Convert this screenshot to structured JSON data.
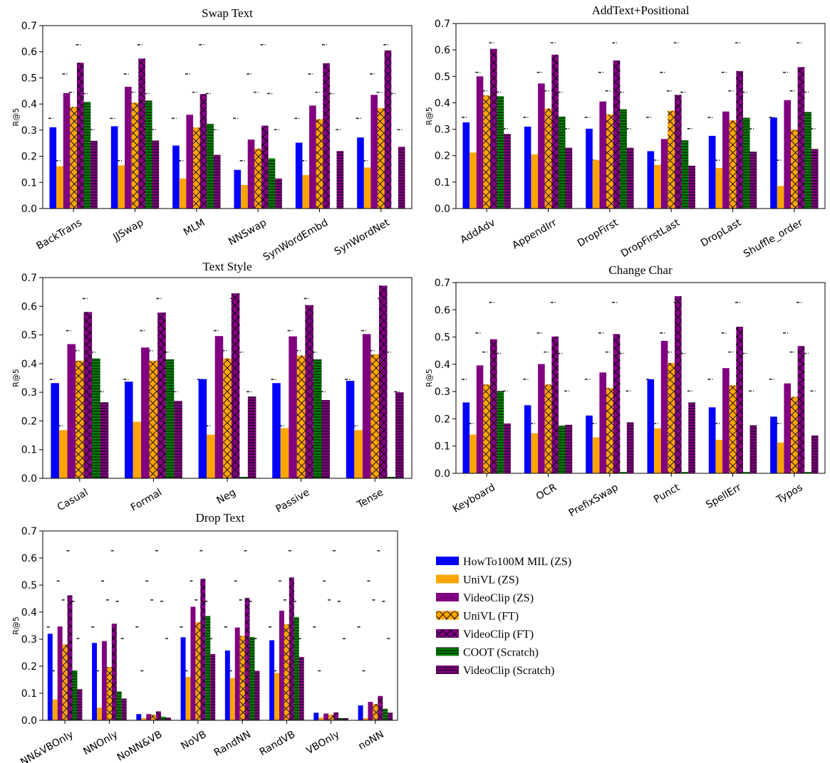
{
  "series_styles": [
    {
      "name": "HowTo100M MIL (ZS)",
      "color": "#0000ff",
      "hatch": "none"
    },
    {
      "name": "UniVL (ZS)",
      "color": "#ffa500",
      "hatch": "none"
    },
    {
      "name": "VideoClip (ZS)",
      "color": "#800080",
      "hatch": "none"
    },
    {
      "name": "UniVL (FT)",
      "color": "#ffa500",
      "hatch": "cross"
    },
    {
      "name": "VideoClip (FT)",
      "color": "#800080",
      "hatch": "cross"
    },
    {
      "name": "COOT (Scratch)",
      "color": "#008000",
      "hatch": "horizontal"
    },
    {
      "name": "VideoClip (Scratch)",
      "color": "#800080",
      "hatch": "horizontal"
    }
  ],
  "reference_levels": [
    0.345,
    0.183,
    0.515,
    0.445,
    0.627,
    0.44,
    0.302
  ],
  "chart_data": [
    {
      "type": "bar",
      "title": "Swap Text",
      "ylabel": "R@5",
      "ylim": [
        0,
        0.7
      ],
      "yticks": [
        "0.0",
        "0.1",
        "0.2",
        "0.3",
        "0.4",
        "0.5",
        "0.6",
        "0.7"
      ],
      "categories": [
        "BackTrans",
        "JJSwap",
        "MLM",
        "NNSwap",
        "SynWordEmbd",
        "SynWordNet"
      ],
      "values": [
        [
          0.311,
          0.162,
          0.442,
          0.389,
          0.558,
          0.408,
          0.259
        ],
        [
          0.315,
          0.165,
          0.466,
          0.405,
          0.574,
          0.413,
          0.26
        ],
        [
          0.241,
          0.115,
          0.359,
          0.31,
          0.438,
          0.324,
          0.205
        ],
        [
          0.148,
          0.09,
          0.264,
          0.229,
          0.317,
          0.192,
          0.115
        ],
        [
          0.252,
          0.128,
          0.394,
          0.342,
          0.556,
          0.0,
          0.22
        ],
        [
          0.272,
          0.157,
          0.435,
          0.384,
          0.605,
          0.0,
          0.236
        ]
      ]
    },
    {
      "type": "bar",
      "title": "AddText+Positional",
      "ylabel": "R@5",
      "ylim": [
        0,
        0.7
      ],
      "yticks": [
        "0.0",
        "0.1",
        "0.2",
        "0.3",
        "0.4",
        "0.5",
        "0.6",
        "0.7"
      ],
      "categories": [
        "AddAdv",
        "AppendIrr",
        "DropFirst",
        "DropFirstLast",
        "DropLast",
        "Shuffle_order"
      ],
      "values": [
        [
          0.326,
          0.212,
          0.5,
          0.428,
          0.604,
          0.425,
          0.282
        ],
        [
          0.31,
          0.205,
          0.473,
          0.378,
          0.582,
          0.348,
          0.23
        ],
        [
          0.302,
          0.183,
          0.405,
          0.356,
          0.56,
          0.375,
          0.23
        ],
        [
          0.217,
          0.165,
          0.263,
          0.37,
          0.43,
          0.258,
          0.162
        ],
        [
          0.275,
          0.153,
          0.367,
          0.333,
          0.52,
          0.343,
          0.215
        ],
        [
          0.344,
          0.085,
          0.41,
          0.298,
          0.535,
          0.365,
          0.225
        ]
      ]
    },
    {
      "type": "bar",
      "title": "Text Style",
      "ylabel": "R@5",
      "ylim": [
        0,
        0.7
      ],
      "yticks": [
        "0.0",
        "0.1",
        "0.2",
        "0.3",
        "0.4",
        "0.5",
        "0.6",
        "0.7"
      ],
      "categories": [
        "Casual",
        "Formal",
        "Neg",
        "Passive",
        "Tense"
      ],
      "values": [
        [
          0.332,
          0.168,
          0.468,
          0.41,
          0.58,
          0.418,
          0.265
        ],
        [
          0.337,
          0.197,
          0.456,
          0.41,
          0.578,
          0.415,
          0.27
        ],
        [
          0.346,
          0.152,
          0.496,
          0.418,
          0.645,
          0.005,
          0.285
        ],
        [
          0.332,
          0.175,
          0.495,
          0.428,
          0.604,
          0.415,
          0.273
        ],
        [
          0.34,
          0.168,
          0.503,
          0.432,
          0.672,
          0.005,
          0.3
        ]
      ]
    },
    {
      "type": "bar",
      "title": "Change Char",
      "ylabel": "R@5",
      "ylim": [
        0,
        0.7
      ],
      "yticks": [
        "0.0",
        "0.1",
        "0.2",
        "0.3",
        "0.4",
        "0.5",
        "0.6",
        "0.7"
      ],
      "categories": [
        "Keyboard",
        "OCR",
        "PrefixSwap",
        "Punct",
        "SpellErr",
        "Typos"
      ],
      "values": [
        [
          0.26,
          0.142,
          0.396,
          0.326,
          0.492,
          0.302,
          0.183
        ],
        [
          0.25,
          0.147,
          0.401,
          0.326,
          0.502,
          0.175,
          0.178
        ],
        [
          0.212,
          0.132,
          0.37,
          0.313,
          0.511,
          0.005,
          0.187
        ],
        [
          0.345,
          0.165,
          0.486,
          0.405,
          0.65,
          0.005,
          0.26
        ],
        [
          0.242,
          0.123,
          0.386,
          0.323,
          0.538,
          0.005,
          0.176
        ],
        [
          0.208,
          0.113,
          0.33,
          0.281,
          0.467,
          0.005,
          0.139
        ]
      ]
    },
    {
      "type": "bar",
      "title": "Drop Text",
      "ylabel": "R@5",
      "ylim": [
        0,
        0.7
      ],
      "yticks": [
        "0.0",
        "0.1",
        "0.2",
        "0.3",
        "0.4",
        "0.5",
        "0.6",
        "0.7"
      ],
      "categories": [
        "NN&VBOnly",
        "NNOnly",
        "NoNN&VB",
        "NoVB",
        "RandNN",
        "RandVB",
        "VBOnly",
        "noNN"
      ],
      "values": [
        [
          0.32,
          0.077,
          0.347,
          0.28,
          0.462,
          0.184,
          0.115
        ],
        [
          0.286,
          0.047,
          0.293,
          0.197,
          0.357,
          0.107,
          0.08
        ],
        [
          0.023,
          0.008,
          0.023,
          0.02,
          0.033,
          0.013,
          0.01
        ],
        [
          0.307,
          0.16,
          0.42,
          0.362,
          0.523,
          0.385,
          0.245
        ],
        [
          0.258,
          0.156,
          0.343,
          0.312,
          0.452,
          0.308,
          0.183
        ],
        [
          0.296,
          0.175,
          0.405,
          0.355,
          0.528,
          0.382,
          0.234
        ],
        [
          0.028,
          0.01,
          0.025,
          0.02,
          0.029,
          0.008,
          0.008
        ],
        [
          0.055,
          0.008,
          0.068,
          0.06,
          0.09,
          0.043,
          0.028
        ]
      ]
    }
  ]
}
